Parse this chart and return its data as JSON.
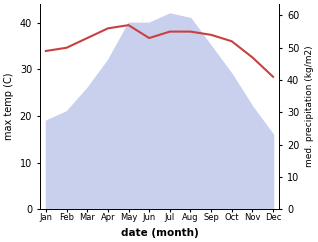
{
  "months": [
    "Jan",
    "Feb",
    "Mar",
    "Apr",
    "May",
    "Jun",
    "Jul",
    "Aug",
    "Sep",
    "Oct",
    "Nov",
    "Dec"
  ],
  "max_temp": [
    19,
    21,
    26,
    32,
    40,
    40,
    42,
    41,
    35,
    29,
    22,
    16
  ],
  "precipitation": [
    49,
    50,
    53,
    56,
    57,
    53,
    55,
    55,
    54,
    52,
    47,
    41
  ],
  "temp_fill_color": "#c8d0ee",
  "precip_color": "#c84040",
  "left_ylabel": "max temp (C)",
  "right_ylabel": "med. precipitation (kg/m2)",
  "xlabel": "date (month)",
  "ylim_left": [
    0,
    44
  ],
  "ylim_right": [
    0,
    63.5
  ],
  "yticks_left": [
    0,
    10,
    20,
    30,
    40
  ],
  "yticks_right": [
    0,
    10,
    20,
    30,
    40,
    50,
    60
  ],
  "fig_width": 3.18,
  "fig_height": 2.42,
  "dpi": 100
}
